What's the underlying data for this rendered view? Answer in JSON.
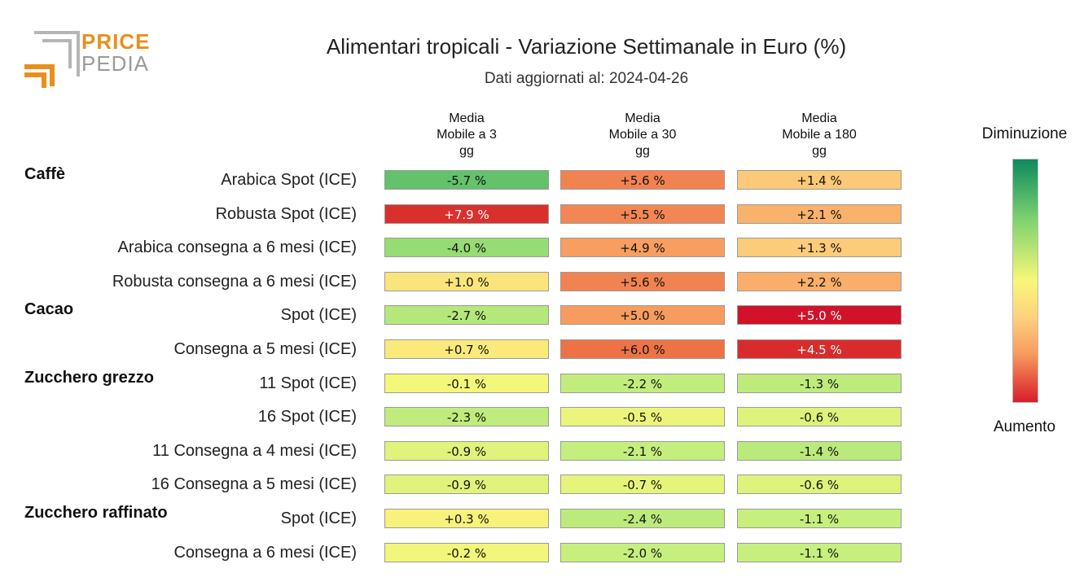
{
  "logo": {
    "word1": "PRICE",
    "word2": "PEDIA"
  },
  "chart_data": {
    "type": "table",
    "title": "Alimentari tropicali - Variazione Settimanale in Euro (%)",
    "subtitle": "Dati aggiornati al: 2024-04-26",
    "columns": [
      "Media Mobile a 3 gg",
      "Media Mobile a 30 gg",
      "Media Mobile a 180 gg"
    ],
    "column_lines": [
      [
        "Media",
        "Mobile a 3",
        "gg"
      ],
      [
        "Media",
        "Mobile a 30",
        "gg"
      ],
      [
        "Media",
        "Mobile a 180",
        "gg"
      ]
    ],
    "unit": "%",
    "legend": {
      "top": "Diminuzione",
      "bottom": "Aumento"
    },
    "color_scale": {
      "low": "#0c8a5e",
      "mid": "#f7f77a",
      "high": "#d91d2a"
    },
    "groups": [
      {
        "name": "Caffè",
        "rows": [
          {
            "label": "Arabica Spot (ICE)",
            "values": [
              "-5.7",
              "+5.6",
              "+1.4"
            ]
          },
          {
            "label": "Robusta Spot (ICE)",
            "values": [
              "+7.9",
              "+5.5",
              "+2.1"
            ]
          },
          {
            "label": "Arabica consegna a 6 mesi (ICE)",
            "values": [
              "-4.0",
              "+4.9",
              "+1.3"
            ]
          },
          {
            "label": "Robusta consegna a 6 mesi (ICE)",
            "values": [
              "+1.0",
              "+5.6",
              "+2.2"
            ]
          }
        ]
      },
      {
        "name": "Cacao",
        "rows": [
          {
            "label": "Spot (ICE)",
            "values": [
              "-2.7",
              "+5.0",
              "+5.0"
            ]
          },
          {
            "label": "Consegna a 5 mesi (ICE)",
            "values": [
              "+0.7",
              "+6.0",
              "+4.5"
            ]
          }
        ]
      },
      {
        "name": "Zucchero grezzo",
        "rows": [
          {
            "label": "11 Spot (ICE)",
            "values": [
              "-0.1",
              "-2.2",
              "-1.3"
            ]
          },
          {
            "label": "16 Spot (ICE)",
            "values": [
              "-2.3",
              "-0.5",
              "-0.6"
            ]
          },
          {
            "label": "11 Consegna a 4 mesi (ICE)",
            "values": [
              "-0.9",
              "-2.1",
              "-1.4"
            ]
          },
          {
            "label": "16 Consegna a 5 mesi (ICE)",
            "values": [
              "-0.9",
              "-0.7",
              "-0.6"
            ]
          }
        ]
      },
      {
        "name": "Zucchero raffinato",
        "rows": [
          {
            "label": "Spot (ICE)",
            "values": [
              "+0.3",
              "-2.4",
              "-1.1"
            ]
          },
          {
            "label": "Consegna a 6 mesi (ICE)",
            "values": [
              "-0.2",
              "-2.0",
              "-1.1"
            ]
          }
        ]
      }
    ]
  }
}
